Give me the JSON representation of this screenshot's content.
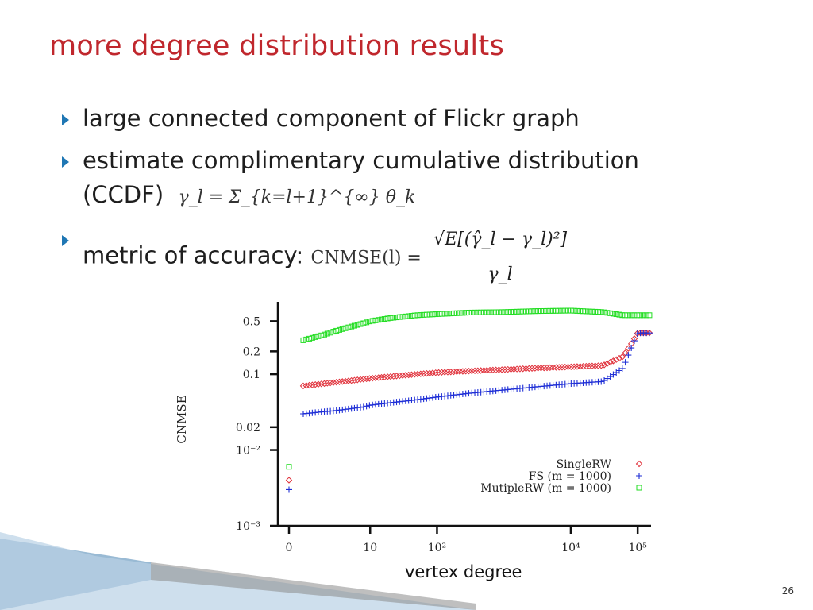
{
  "slide": {
    "title": "more degree distribution results",
    "bullets": [
      "large connected component of Flickr graph",
      "estimate complimentary cumulative distribution",
      "(CCDF)",
      "metric of accuracy:"
    ],
    "ccdf_formula": "γ_l = Σ_{k=l+1}^{∞} θ_k",
    "cnmse_lhs": "CNMSE(l) =",
    "cnmse_num": "√E[(γ̂_l − γ_l)²]",
    "cnmse_den": "γ_l",
    "page_number": "26",
    "accent_color": "#c0272d",
    "bullet_color": "#1f77b4"
  },
  "chart_data": {
    "type": "scatter",
    "title": "",
    "xlabel": "vertex degree",
    "ylabel": "CNMSE",
    "x_scale": "log (with 0 shown separately)",
    "y_scale": "log",
    "xlim": [
      0,
      150000
    ],
    "ylim": [
      0.001,
      0.9
    ],
    "x_ticks": [
      "0",
      "10",
      "10^2",
      "10^4",
      "10^5"
    ],
    "y_ticks": [
      "0.5",
      "0.2",
      "0.1",
      "0.02",
      "10^-2",
      "10^-3"
    ],
    "legend_position": "bottom-right",
    "series": [
      {
        "name": "SingleRW",
        "marker": "diamond",
        "color": "#e0303a",
        "x": [
          0,
          1,
          2,
          3,
          5,
          8,
          10,
          20,
          50,
          100,
          300,
          1000,
          3000,
          10000,
          30000,
          60000,
          80000,
          100000,
          150000
        ],
        "y": [
          0.004,
          0.07,
          0.075,
          0.078,
          0.082,
          0.086,
          0.088,
          0.093,
          0.1,
          0.105,
          0.11,
          0.115,
          0.12,
          0.125,
          0.13,
          0.17,
          0.25,
          0.35,
          0.35
        ]
      },
      {
        "name": "FS (m = 1000)",
        "marker": "plus",
        "color": "#1f2fd6",
        "x": [
          0,
          1,
          2,
          3,
          5,
          8,
          10,
          20,
          50,
          100,
          300,
          1000,
          3000,
          10000,
          30000,
          60000,
          80000,
          100000,
          150000
        ],
        "y": [
          0.003,
          0.03,
          0.032,
          0.033,
          0.035,
          0.037,
          0.039,
          0.042,
          0.046,
          0.05,
          0.056,
          0.062,
          0.068,
          0.075,
          0.08,
          0.12,
          0.22,
          0.35,
          0.35
        ]
      },
      {
        "name": "MutipleRW (m = 1000)",
        "marker": "square",
        "color": "#22dd22",
        "x": [
          0,
          1,
          2,
          3,
          5,
          8,
          10,
          20,
          50,
          100,
          300,
          1000,
          3000,
          10000,
          30000,
          60000,
          80000,
          100000,
          150000
        ],
        "y": [
          0.006,
          0.28,
          0.33,
          0.37,
          0.42,
          0.47,
          0.5,
          0.55,
          0.6,
          0.62,
          0.65,
          0.66,
          0.68,
          0.69,
          0.66,
          0.6,
          0.6,
          0.6,
          0.6
        ]
      }
    ]
  }
}
